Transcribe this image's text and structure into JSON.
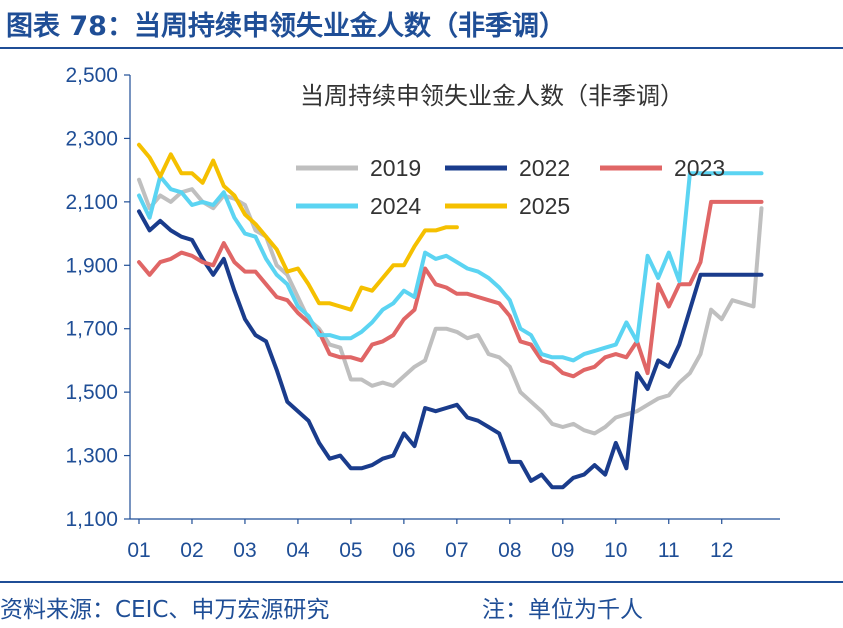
{
  "header": {
    "figure_title": "图表 78：当周持续申领失业金人数（非季调）"
  },
  "footer": {
    "source": "资料来源：CEIC、申万宏源研究",
    "note": "注：单位为千人"
  },
  "colors": {
    "brand": "#1f4e96",
    "2019": "#bfbfbf",
    "2022": "#1a3c8c",
    "2023": "#e06666",
    "2024": "#5bd4f2",
    "2025": "#f5c000"
  },
  "chart_data": {
    "type": "line",
    "title": "当周持续申领失业金人数（非季调）",
    "xlabel": "",
    "ylabel": "",
    "ylim": [
      1100,
      2500
    ],
    "xlim": [
      1,
      13
    ],
    "y_ticks": [
      1100,
      1300,
      1500,
      1700,
      1900,
      2100,
      2300,
      2500
    ],
    "y_tick_labels": [
      "1,100",
      "1,300",
      "1,500",
      "1,700",
      "1,900",
      "2,100",
      "2,300",
      "2,500"
    ],
    "x_ticks": [
      1,
      2,
      3,
      4,
      5,
      6,
      7,
      8,
      9,
      10,
      11,
      12
    ],
    "x_tick_labels": [
      "01",
      "02",
      "03",
      "04",
      "05",
      "06",
      "07",
      "08",
      "09",
      "10",
      "11",
      "12"
    ],
    "grid": false,
    "legend": "upper center, inside plot",
    "series": [
      {
        "name": "2019",
        "color": "#bfbfbf",
        "x": [
          1.0,
          1.2,
          1.4,
          1.6,
          1.8,
          2.0,
          2.2,
          2.4,
          2.6,
          2.8,
          3.0,
          3.2,
          3.4,
          3.6,
          3.8,
          4.0,
          4.2,
          4.4,
          4.6,
          4.8,
          5.0,
          5.2,
          5.4,
          5.6,
          5.8,
          6.0,
          6.2,
          6.4,
          6.6,
          6.8,
          7.0,
          7.2,
          7.4,
          7.6,
          7.8,
          8.0,
          8.2,
          8.4,
          8.6,
          8.8,
          9.0,
          9.2,
          9.4,
          9.6,
          9.8,
          10.0,
          10.2,
          10.4,
          10.6,
          10.8,
          11.0,
          11.2,
          11.4,
          11.6,
          11.8,
          12.0,
          12.2,
          12.4,
          12.6,
          12.75
        ],
        "y": [
          2170,
          2080,
          2120,
          2100,
          2130,
          2140,
          2100,
          2080,
          2120,
          2110,
          2090,
          2010,
          1990,
          1900,
          1870,
          1800,
          1730,
          1700,
          1650,
          1640,
          1540,
          1540,
          1520,
          1530,
          1520,
          1550,
          1580,
          1600,
          1700,
          1700,
          1690,
          1670,
          1680,
          1620,
          1610,
          1580,
          1500,
          1470,
          1440,
          1400,
          1390,
          1400,
          1380,
          1370,
          1390,
          1420,
          1430,
          1440,
          1460,
          1480,
          1490,
          1530,
          1560,
          1620,
          1760,
          1730,
          1790,
          1780,
          1770,
          2080
        ]
      },
      {
        "name": "2022",
        "color": "#1a3c8c",
        "x": [
          1.0,
          1.2,
          1.4,
          1.6,
          1.8,
          2.0,
          2.2,
          2.4,
          2.6,
          2.8,
          3.0,
          3.2,
          3.4,
          3.6,
          3.8,
          4.0,
          4.2,
          4.4,
          4.6,
          4.8,
          5.0,
          5.2,
          5.4,
          5.6,
          5.8,
          6.0,
          6.2,
          6.4,
          6.6,
          6.8,
          7.0,
          7.2,
          7.4,
          7.6,
          7.8,
          8.0,
          8.2,
          8.4,
          8.6,
          8.8,
          9.0,
          9.2,
          9.4,
          9.6,
          9.8,
          10.0,
          10.2,
          10.4,
          10.6,
          10.8,
          11.0,
          11.2,
          11.4,
          11.6,
          11.8,
          12.0,
          12.2,
          12.4,
          12.6,
          12.75
        ],
        "y": [
          2070,
          2010,
          2040,
          2010,
          1990,
          1980,
          1920,
          1870,
          1920,
          1820,
          1730,
          1680,
          1660,
          1570,
          1470,
          1440,
          1410,
          1340,
          1290,
          1300,
          1260,
          1260,
          1270,
          1290,
          1300,
          1370,
          1330,
          1450,
          1440,
          1450,
          1460,
          1420,
          1410,
          1390,
          1370,
          1280,
          1280,
          1220,
          1240,
          1200,
          1200,
          1230,
          1240,
          1270,
          1240,
          1340,
          1260,
          1560,
          1510,
          1600,
          1580,
          1650,
          1760,
          1870,
          1870,
          1870,
          1870,
          1870,
          1870,
          1870
        ]
      },
      {
        "name": "2023",
        "color": "#e06666",
        "x": [
          1.0,
          1.2,
          1.4,
          1.6,
          1.8,
          2.0,
          2.2,
          2.4,
          2.6,
          2.8,
          3.0,
          3.2,
          3.4,
          3.6,
          3.8,
          4.0,
          4.2,
          4.4,
          4.6,
          4.8,
          5.0,
          5.2,
          5.4,
          5.6,
          5.8,
          6.0,
          6.2,
          6.4,
          6.6,
          6.8,
          7.0,
          7.2,
          7.4,
          7.6,
          7.8,
          8.0,
          8.2,
          8.4,
          8.6,
          8.8,
          9.0,
          9.2,
          9.4,
          9.6,
          9.8,
          10.0,
          10.2,
          10.4,
          10.6,
          10.8,
          11.0,
          11.2,
          11.4,
          11.6,
          11.8,
          12.0,
          12.2,
          12.4,
          12.6,
          12.75
        ],
        "y": [
          1910,
          1870,
          1910,
          1920,
          1940,
          1930,
          1910,
          1900,
          1970,
          1910,
          1880,
          1880,
          1840,
          1800,
          1790,
          1750,
          1720,
          1690,
          1620,
          1610,
          1610,
          1600,
          1650,
          1660,
          1680,
          1730,
          1760,
          1890,
          1840,
          1830,
          1810,
          1810,
          1800,
          1790,
          1780,
          1740,
          1660,
          1650,
          1600,
          1590,
          1560,
          1550,
          1570,
          1580,
          1610,
          1620,
          1610,
          1660,
          1560,
          1840,
          1770,
          1840,
          1840,
          1910,
          2100,
          2100,
          2100,
          2100,
          2100,
          2100
        ]
      },
      {
        "name": "2024",
        "color": "#5bd4f2",
        "x": [
          1.0,
          1.2,
          1.4,
          1.6,
          1.8,
          2.0,
          2.2,
          2.4,
          2.6,
          2.8,
          3.0,
          3.2,
          3.4,
          3.6,
          3.8,
          4.0,
          4.2,
          4.4,
          4.6,
          4.8,
          5.0,
          5.2,
          5.4,
          5.6,
          5.8,
          6.0,
          6.2,
          6.4,
          6.6,
          6.8,
          7.0,
          7.2,
          7.4,
          7.6,
          7.8,
          8.0,
          8.2,
          8.4,
          8.6,
          8.8,
          9.0,
          9.2,
          9.4,
          9.6,
          9.8,
          10.0,
          10.2,
          10.4,
          10.6,
          10.8,
          11.0,
          11.2,
          11.4,
          11.6,
          11.8,
          12.0,
          12.2,
          12.4,
          12.6,
          12.75
        ],
        "y": [
          2120,
          2050,
          2180,
          2140,
          2130,
          2090,
          2100,
          2090,
          2130,
          2050,
          2000,
          1990,
          1920,
          1870,
          1840,
          1770,
          1740,
          1680,
          1680,
          1670,
          1670,
          1690,
          1720,
          1760,
          1780,
          1820,
          1800,
          1940,
          1920,
          1930,
          1910,
          1890,
          1880,
          1860,
          1830,
          1790,
          1700,
          1680,
          1620,
          1610,
          1610,
          1600,
          1620,
          1630,
          1640,
          1650,
          1720,
          1660,
          1930,
          1860,
          1940,
          1850,
          2190,
          2190,
          2190,
          2190,
          2190,
          2190,
          2190,
          2190
        ]
      },
      {
        "name": "2025",
        "color": "#f5c000",
        "x": [
          1.0,
          1.2,
          1.4,
          1.6,
          1.8,
          2.0,
          2.2,
          2.4,
          2.6,
          2.8,
          3.0,
          3.2,
          3.4,
          3.6,
          3.8,
          4.0,
          4.2,
          4.4,
          4.6,
          4.8,
          5.0,
          5.2,
          5.4,
          5.6,
          5.8,
          6.0,
          6.2,
          6.4,
          6.6,
          6.8,
          7.0
        ],
        "y": [
          2280,
          2240,
          2180,
          2250,
          2190,
          2190,
          2160,
          2230,
          2150,
          2120,
          2060,
          2030,
          1990,
          1950,
          1880,
          1890,
          1840,
          1780,
          1780,
          1770,
          1760,
          1830,
          1820,
          1860,
          1900,
          1900,
          1960,
          2010,
          2010,
          2020,
          2020
        ]
      }
    ]
  }
}
